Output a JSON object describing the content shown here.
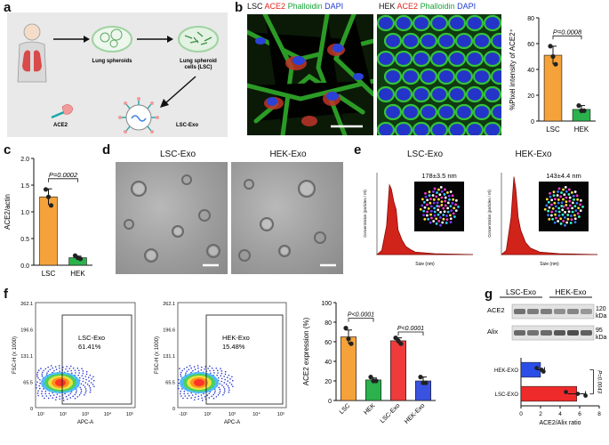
{
  "panels": {
    "a": {
      "letter": "a",
      "labels": {
        "lung_spheroids": "Lung spheroids",
        "lsc_line1": "Lung spheroid",
        "lsc_line2": "cells (LSC)",
        "ace2": "ACE2",
        "lsc_exo": "LSC-Exo"
      },
      "colors": {
        "background": "#e9e9e9",
        "lung": "#d94a4a",
        "dish_rim": "#9fd3a1"
      }
    },
    "b": {
      "letter": "b",
      "lsc_title": {
        "cell": "LSC",
        "ace2": "ACE2",
        "phalloidin": "Phalloidin",
        "dapi": "DAPI"
      },
      "hek_title": {
        "cell": "HEK",
        "ace2": "ACE2",
        "phalloidin": "Phalloidin",
        "dapi": "DAPI"
      },
      "colors": {
        "ace2": "#e0261e",
        "phalloidin": "#19a53a",
        "dapi": "#1e3ad6"
      },
      "chart": {
        "ylabel": "%Pixel intensity of ACE2⁺",
        "pvalue": "P=0.0008",
        "yticks": [
          "0",
          "20",
          "40",
          "60",
          "80"
        ]
      }
    },
    "c": {
      "letter": "c",
      "chart": {
        "ylabel": "ACE2/actin",
        "pvalue": "P=0.0002",
        "yticks": [
          "0.0",
          "0.5",
          "1.0",
          "1.5",
          "2.0"
        ]
      }
    },
    "d": {
      "letter": "d",
      "lsc_exo_title": "LSC-Exo",
      "hek_exo_title": "HEK-Exo"
    },
    "e": {
      "letter": "e",
      "lsc_exo_title": "LSC-Exo",
      "hek_exo_title": "HEK-Exo",
      "lsc_size": "178±3.5 nm",
      "hek_size": "143±4.4 nm",
      "xlabel": "Size (nm)",
      "ylabel": "Concentration (particles / ml)"
    },
    "f": {
      "letter": "f",
      "flow1": {
        "gate_name": "LSC-Exo",
        "gate_pct": "61.41%"
      },
      "flow2": {
        "gate_name": "HEK-Exo",
        "gate_pct": "15.48%"
      },
      "flow_ylabel": "FSC-H (x 1000)",
      "flow_xlabel": "APC-A",
      "flow_yticks": [
        "262.1",
        "196.6",
        "131.1",
        "65.5",
        "0"
      ],
      "flow1_xticks": [
        "10¹",
        "10²",
        "10³",
        "10⁴",
        "10⁵"
      ],
      "flow2_xticks": [
        "-10¹",
        "10²",
        "10³",
        "10⁴",
        "10⁵"
      ],
      "chart": {
        "ylabel": "ACE2 expression (%)",
        "p1": "P<0.0001",
        "p2": "P<0.0001",
        "yticks": [
          "0",
          "20",
          "40",
          "60",
          "80",
          "100"
        ]
      }
    },
    "g": {
      "letter": "g",
      "lsc_exo_header": "LSC-Exo",
      "hek_exo_header": "HEK-Exo",
      "ace2": "ACE2",
      "alix": "Alix",
      "ace2_kda_num": "120",
      "ace2_kda_unit": "kDa",
      "alix_kda_num": "95",
      "alix_kda_unit": "kDa",
      "chart": {
        "xlabel": "ACE2/Alix ratio",
        "pvalue": "P=0.0043",
        "xticks": [
          "0",
          "2",
          "4",
          "6",
          "8"
        ]
      }
    }
  },
  "chart_data": [
    {
      "type": "bar",
      "panel": "b",
      "categories": [
        "LSC",
        "HEK"
      ],
      "values": [
        51,
        9
      ],
      "errors": [
        7,
        3
      ],
      "points": [
        [
          58,
          50,
          44
        ],
        [
          12,
          8,
          8
        ]
      ],
      "colors": [
        "#f5a23a",
        "#2bb24c"
      ],
      "ylabel": "%Pixel intensity of ACE2⁺",
      "ylim": [
        0,
        80
      ],
      "pvalue": "P=0.0008"
    },
    {
      "type": "bar",
      "panel": "c",
      "categories": [
        "LSC",
        "HEK"
      ],
      "values": [
        1.28,
        0.14
      ],
      "errors": [
        0.15,
        0.03
      ],
      "points": [
        [
          1.42,
          1.28,
          1.12
        ],
        [
          0.18,
          0.14,
          0.12
        ]
      ],
      "colors": [
        "#f5a23a",
        "#2bb24c"
      ],
      "ylabel": "ACE2/actin",
      "ylim": [
        0,
        2.0
      ],
      "pvalue": "P=0.0002"
    },
    {
      "type": "bar",
      "panel": "f",
      "categories": [
        "LSC",
        "HEK",
        "LSC-Exo",
        "HEK-Exo"
      ],
      "values": [
        65,
        21,
        61,
        20
      ],
      "errors": [
        7,
        2,
        3,
        4
      ],
      "points": [
        [
          74,
          63,
          58
        ],
        [
          24,
          20,
          20
        ],
        [
          64,
          61,
          58
        ],
        [
          24,
          18,
          18
        ]
      ],
      "colors": [
        "#f5a23a",
        "#2bb24c",
        "#ef3b3b",
        "#3a52e0"
      ],
      "ylabel": "ACE2 expression (%)",
      "ylim": [
        0,
        100
      ],
      "pvalues": [
        "P<0.0001",
        "P<0.0001"
      ]
    },
    {
      "type": "bar",
      "orientation": "horizontal",
      "panel": "g",
      "categories": [
        "HEK-EXO",
        "LSC-EXO"
      ],
      "values": [
        2.0,
        5.7
      ],
      "errors": [
        0.4,
        0.9
      ],
      "points": [
        [
          1.6,
          2.1,
          2.3
        ],
        [
          4.6,
          5.8,
          6.6
        ]
      ],
      "colors": [
        "#2b4ee8",
        "#ef2a2a"
      ],
      "xlabel": "ACE2/Alix ratio",
      "xlim": [
        0,
        8
      ],
      "pvalue": "P=0.0043"
    },
    {
      "type": "area",
      "panel": "e",
      "name": "LSC-Exo",
      "x": [
        0,
        50,
        100,
        130,
        150,
        175,
        200,
        220,
        260,
        300,
        350,
        400,
        500,
        600,
        800,
        1000
      ],
      "y": [
        0,
        0.05,
        0.35,
        0.85,
        0.8,
        0.65,
        0.55,
        0.3,
        0.18,
        0.1,
        0.06,
        0.03,
        0.02,
        0.01,
        0.005,
        0
      ],
      "xlabel": "Size (nm)",
      "ylabel": "Concentration (particles / ml)"
    },
    {
      "type": "area",
      "panel": "e",
      "name": "HEK-Exo",
      "x": [
        0,
        50,
        100,
        130,
        150,
        175,
        200,
        250,
        300,
        400,
        500,
        600,
        800,
        1000
      ],
      "y": [
        0,
        0.05,
        0.45,
        0.95,
        0.8,
        0.45,
        0.3,
        0.15,
        0.08,
        0.03,
        0.02,
        0.01,
        0.005,
        0
      ],
      "xlabel": "Size (nm)",
      "ylabel": "Concentration (particles / ml)"
    }
  ]
}
